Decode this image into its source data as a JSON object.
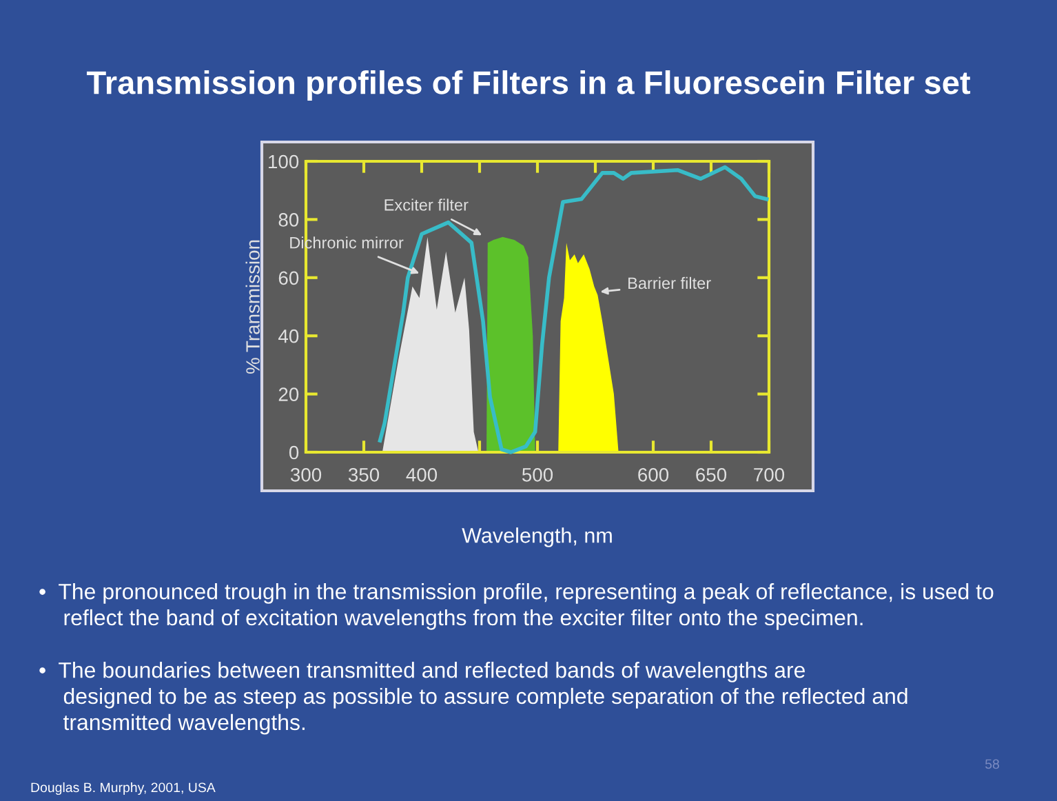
{
  "chart_data": {
    "type": "area",
    "title": "Transmission profiles of Filters in a Fluorescein Filter set",
    "xlabel": "Wavelength, nm",
    "ylabel": "% Transmission",
    "xlim": [
      300,
      700
    ],
    "ylim": [
      0,
      100
    ],
    "xticks": [
      300,
      350,
      400,
      {
        "value": 450,
        "label": null
      },
      500,
      {
        "value": 550,
        "label": null
      },
      600,
      650,
      700
    ],
    "yticks": [
      0,
      20,
      40,
      60,
      80,
      100
    ],
    "grid": false,
    "legend": false,
    "series": [
      {
        "color": "#e6e6e6",
        "x": [
          366,
          380,
          392,
          398,
          405,
          413,
          421,
          429,
          437,
          441,
          445,
          449
        ],
        "values": [
          0,
          32,
          57,
          53,
          74,
          49,
          69,
          48,
          60,
          42,
          7,
          0
        ]
      },
      {
        "color": "#5cc12a",
        "x": [
          456,
          457,
          462,
          470,
          480,
          488,
          492,
          496,
          498
        ],
        "values": [
          0,
          72,
          73,
          74,
          73,
          71,
          67,
          40,
          0
        ]
      },
      {
        "color": "#ffff00",
        "x": [
          518,
          520,
          523,
          525,
          528,
          532,
          535,
          540,
          545,
          549,
          552,
          556,
          566,
          570
        ],
        "values": [
          0,
          45,
          53,
          72,
          66,
          68,
          65,
          68,
          63,
          57,
          54,
          45,
          20,
          0
        ]
      },
      {
        "type": "line",
        "color": "#38bcc8",
        "x": [
          364,
          368,
          376,
          384,
          388,
          400,
          423,
          443,
          453,
          459,
          469,
          477,
          490,
          498,
          504,
          510,
          522,
          538,
          556,
          566,
          574,
          581,
          621,
          641,
          662,
          676,
          688,
          698
        ],
        "values": [
          4,
          10,
          29,
          48,
          60,
          75,
          79,
          72,
          45,
          19,
          1,
          0,
          2,
          7,
          37,
          60,
          86,
          87,
          96,
          96,
          94,
          96,
          97,
          94,
          98,
          94,
          88,
          87
        ]
      }
    ],
    "annotations": [
      {
        "text": "Dichronic mirror",
        "x": 401,
        "y": 61
      },
      {
        "text": "Exciter filter",
        "x": 455,
        "y": 74
      },
      {
        "text": "Barrier filter",
        "x": 551,
        "y": 55
      },
      "•  The pronounced trough in the transmission profile, representing a peak of reflectance, is used to\n    reflect the band of excitation wavelengths from the exciter filter onto the specimen.",
      "•  The boundaries between transmitted and reflected bands of wavelengths are\n    designed to be as steep as possible to assure complete separation of the reflected and\n    transmitted wavelengths.",
      "Douglas B. Murphy, 2001, USA",
      "58"
    ]
  }
}
